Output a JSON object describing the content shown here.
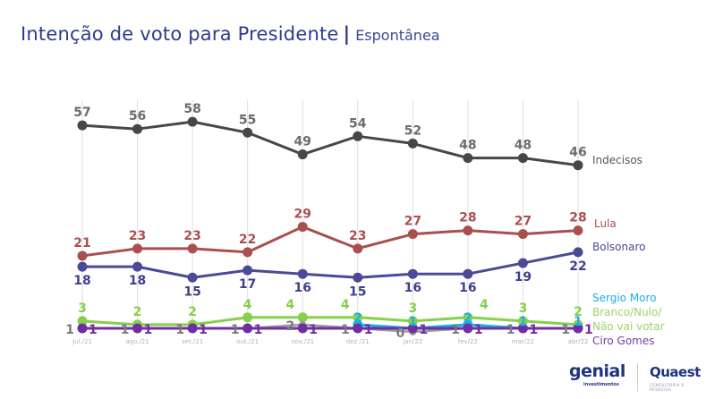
{
  "header": {
    "title": "Intenção de voto para Presidente",
    "separator": "|",
    "subtitle": "Espontânea"
  },
  "logos": {
    "left_name": "genial",
    "left_sub": "investimentos",
    "right_name": "Quaest",
    "right_sub": "CONSULTORIA E PESQUISA"
  },
  "chart_data": {
    "type": "line",
    "title": "Intenção de voto para Presidente | Espontânea",
    "xlabel": "",
    "ylabel": "",
    "ylim": [
      0,
      60
    ],
    "grid": "vertical",
    "legend": "right",
    "categories": [
      "jul./21",
      "ago./21",
      "set./21",
      "out./21",
      "nov./21",
      "dez./21",
      "jan/22",
      "fev/22",
      "mar/22",
      "abr/22"
    ],
    "series": [
      {
        "name": "Indecisos",
        "color": "#474747",
        "label_color": "#6b6b6b",
        "label_pos": "above",
        "values": [
          57,
          56,
          58,
          55,
          49,
          54,
          52,
          48,
          48,
          46
        ]
      },
      {
        "name": "Lula",
        "color": "#a9504f",
        "label_color": "#a9504f",
        "label_pos": "above",
        "values": [
          21,
          23,
          23,
          22,
          29,
          23,
          27,
          28,
          27,
          28
        ]
      },
      {
        "name": "Bolsonaro",
        "color": "#4a4a96",
        "label_color": "#3f3f8f",
        "label_pos": "below",
        "values": [
          18,
          18,
          15,
          17,
          16,
          15,
          16,
          16,
          19,
          22
        ]
      },
      {
        "name": "Sergio Moro",
        "color": "#1ab0e8",
        "label_color": "#1ab0e8",
        "label_pos": "above",
        "values": [
          null,
          null,
          null,
          null,
          null,
          2,
          1,
          2,
          1,
          1
        ]
      },
      {
        "name": "Branco/Nulo/\nNão vai votar",
        "color": "#86d04b",
        "label_color": "#86d04b",
        "label_pos": "above",
        "values": [
          3,
          2,
          2,
          4,
          4,
          4,
          3,
          4,
          3,
          2
        ]
      },
      {
        "name": "Outros",
        "color": "#9a9a9a",
        "label_color": "#7a7a7a",
        "label_pos": "left",
        "values": [
          1,
          1,
          1,
          1,
          2,
          1,
          0,
          1,
          1,
          1
        ]
      },
      {
        "name": "Ciro Gomes",
        "color": "#6f2fa3",
        "label_color": "#6f2fa3",
        "label_pos": "right",
        "values": [
          1,
          1,
          1,
          1,
          1,
          1,
          1,
          1,
          1,
          1
        ]
      }
    ],
    "legend_entries": [
      {
        "text": "Indecisos",
        "color": "#555555"
      },
      {
        "text": "Lula",
        "color": "#a9504f"
      },
      {
        "text": "Bolsonaro",
        "color": "#4a4a96"
      },
      {
        "text": "Sergio Moro",
        "color": "#1ab0e8"
      },
      {
        "text": "Branco/Nulo/",
        "color": "#9ed36b"
      },
      {
        "text": "Não vai votar",
        "color": "#9ed36b"
      },
      {
        "text": "Ciro Gomes",
        "color": "#7a3aab"
      }
    ]
  }
}
